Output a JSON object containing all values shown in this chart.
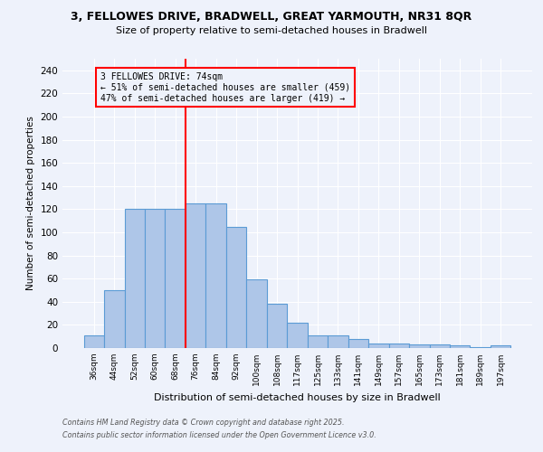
{
  "title1": "3, FELLOWES DRIVE, BRADWELL, GREAT YARMOUTH, NR31 8QR",
  "title2": "Size of property relative to semi-detached houses in Bradwell",
  "xlabel": "Distribution of semi-detached houses by size in Bradwell",
  "ylabel": "Number of semi-detached properties",
  "bar_labels": [
    "36sqm",
    "44sqm",
    "52sqm",
    "60sqm",
    "68sqm",
    "76sqm",
    "84sqm",
    "92sqm",
    "100sqm",
    "108sqm",
    "117sqm",
    "125sqm",
    "133sqm",
    "141sqm",
    "149sqm",
    "157sqm",
    "165sqm",
    "173sqm",
    "181sqm",
    "189sqm",
    "197sqm"
  ],
  "bar_values": [
    11,
    50,
    120,
    120,
    120,
    125,
    125,
    105,
    59,
    38,
    22,
    11,
    11,
    8,
    4,
    4,
    3,
    3,
    2,
    1,
    2
  ],
  "bar_color": "#aec6e8",
  "bar_edge_color": "#5b9bd5",
  "background_color": "#eef2fb",
  "grid_color": "#ffffff",
  "vline_color": "red",
  "vline_pos": 4.5,
  "annotation_title": "3 FELLOWES DRIVE: 74sqm",
  "annotation_line1": "← 51% of semi-detached houses are smaller (459)",
  "annotation_line2": "47% of semi-detached houses are larger (419) →",
  "annotation_box_color": "red",
  "ylim": [
    0,
    250
  ],
  "yticks": [
    0,
    20,
    40,
    60,
    80,
    100,
    120,
    140,
    160,
    180,
    200,
    220,
    240
  ],
  "footer1": "Contains HM Land Registry data © Crown copyright and database right 2025.",
  "footer2": "Contains public sector information licensed under the Open Government Licence v3.0."
}
